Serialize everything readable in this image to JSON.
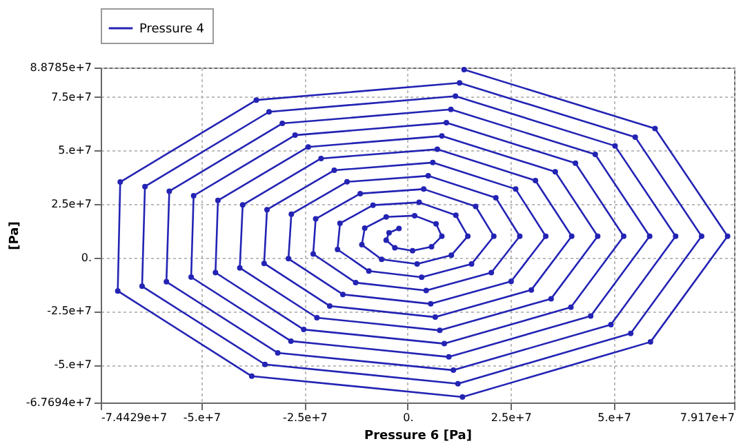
{
  "chart_data": {
    "type": "line",
    "xlabel": "Pressure 6 [Pa]",
    "ylabel": "[Pa]",
    "x": [
      13700000.0,
      60000000.0,
      77600000.0,
      58900000.0,
      13300000.0,
      -37800000.0,
      -70300000.0,
      -69700000.0,
      -36700000.0,
      12600000.0,
      55200000.0,
      71300000.0,
      54100000.0,
      12200000.0,
      -34600000.0,
      -64400000.0,
      -63700000.0,
      -33600000.0,
      11600000.0,
      50300000.0,
      65000000.0,
      49300000.0,
      11100000.0,
      -31500000.0,
      -58500000.0,
      -57800000.0,
      -30400000.0,
      10500000.0,
      45500000.0,
      58700000.0,
      44400000.0,
      10000000.0,
      -28300000.0,
      -52500000.0,
      -51900000.0,
      -27300000.0,
      9400000.0,
      40700000.0,
      52400000.0,
      39600000.0,
      8900000.0,
      -25200000.0,
      -46600000.0,
      -46000000.0,
      -24100000.0,
      8300000.0,
      35800000.0,
      46100000.0,
      34800000.0,
      7800000.0,
      -22000000.0,
      -40700000.0,
      -40000000.0,
      -21000000.0,
      7200000.0,
      31000000.0,
      39800000.0,
      30000000.0,
      6700000.0,
      -18900000.0,
      -34800000.0,
      -34100000.0,
      -17800000.0,
      6100000.0,
      26200000.0,
      33500000.0,
      25100000.0,
      5600000.0,
      -15700000.0,
      -28900000.0,
      -28200000.0,
      -14700000.0,
      5000000.0,
      21400000.0,
      27200000.0,
      20300000.0,
      4500000.0,
      -12600000.0,
      -22900000.0,
      -22300000.0,
      -11500000.0,
      3900000.0,
      16500000.0,
      20900000.0,
      15500000.0,
      3400000.0,
      -9400000.0,
      -17000000.0,
      -16400000.0,
      -8400000.0,
      2800000.0,
      11700000.0,
      14600000.0,
      10600000.0,
      2300000.0,
      -6300000.0,
      -11100000.0,
      -10400000.0,
      -5200000.0,
      1700000.0,
      6900000.0,
      8300000.0,
      5800000.0,
      1200000.0,
      -3100000.0,
      -5200000.0,
      -4500000.0,
      -2100000.0
    ],
    "series": [
      {
        "name": "Pressure 4",
        "color": "#2323b4",
        "values": [
          87800000.0,
          60300000.0,
          10000000.0,
          -39400000.0,
          -65100000.0,
          -55400000.0,
          -15600000.0,
          35300000.0,
          73600000.0,
          81600000.0,
          56300000.0,
          10000000.0,
          -35400000.0,
          -58900000.0,
          -49900000.0,
          -13400000.0,
          33200000.0,
          68100000.0,
          75400000.0,
          52200000.0,
          10000000.0,
          -31300000.0,
          -52600000.0,
          -44500000.0,
          -11300000.0,
          31000000.0,
          62700000.0,
          69200000.0,
          48200000.0,
          10000000.0,
          -27300000.0,
          -46400000.0,
          -39000000.0,
          -9100000.0,
          28900000.0,
          57200000.0,
          63000000.0,
          44100000.0,
          10000000.0,
          -23200000.0,
          -40200000.0,
          -33600000.0,
          -7000000.0,
          26700000.0,
          51700000.0,
          56800000.0,
          40100000.0,
          10000000.0,
          -19200000.0,
          -34000000.0,
          -28100000.0,
          -4800000.0,
          24600000.0,
          46300000.0,
          50600000.0,
          36000000.0,
          10000000.0,
          -15100000.0,
          -27800000.0,
          -22600000.0,
          -2700000.0,
          22400000.0,
          40800000.0,
          44400000.0,
          32000000.0,
          10000000.0,
          -11100000.0,
          -21600000.0,
          -17200000.0,
          -500000.0,
          20300000.0,
          35400000.0,
          38200000.0,
          27900000.0,
          10000000.0,
          -7000000.0,
          -15400000.0,
          -11700000.0,
          1700000.0,
          18100000.0,
          29900000.0,
          32000000.0,
          23900000.0,
          10000000.0,
          -3000000.0,
          -9200000.0,
          -6300000.0,
          3800000.0,
          16000000.0,
          24500000.0,
          25800000.0,
          19800000.0,
          10000000.0,
          1100000.0,
          -3000000.0,
          -800000.0,
          6000000.0,
          13800000.0,
          19000000.0,
          19600000.0,
          15800000.0,
          10000000.0,
          5100000.0,
          3200000.0,
          4600000.0,
          8100000.0,
          11600000.0,
          13600000.0
        ]
      }
    ],
    "xlim": [
      -74429000.0,
      79170000.0
    ],
    "xticks": [
      {
        "value": -74429000.0,
        "label": "-7.4429e+7"
      },
      {
        "value": -50000000.0,
        "label": "-5.e+7"
      },
      {
        "value": -25000000.0,
        "label": "-2.5e+7"
      },
      {
        "value": 0,
        "label": "0."
      },
      {
        "value": 25000000.0,
        "label": "2.5e+7"
      },
      {
        "value": 50000000.0,
        "label": "5.e+7"
      },
      {
        "value": 79170000.0,
        "label": "7.917e+7"
      }
    ],
    "ylim": [
      -67694000.0,
      88785000.0
    ],
    "yticks": [
      {
        "value": -67694000.0,
        "label": "-6.7694e+7"
      },
      {
        "value": -50000000.0,
        "label": "-5.e+7"
      },
      {
        "value": -25000000.0,
        "label": "-2.5e+7"
      },
      {
        "value": 0,
        "label": "0."
      },
      {
        "value": 25000000.0,
        "label": "2.5e+7"
      },
      {
        "value": 50000000.0,
        "label": "5.e+7"
      },
      {
        "value": 75000000.0,
        "label": "7.5e+7"
      },
      {
        "value": 88785000.0,
        "label": "8.8785e+7"
      }
    ],
    "grid": true,
    "legend": "top left",
    "marker": "circle",
    "line_style": "solid"
  }
}
